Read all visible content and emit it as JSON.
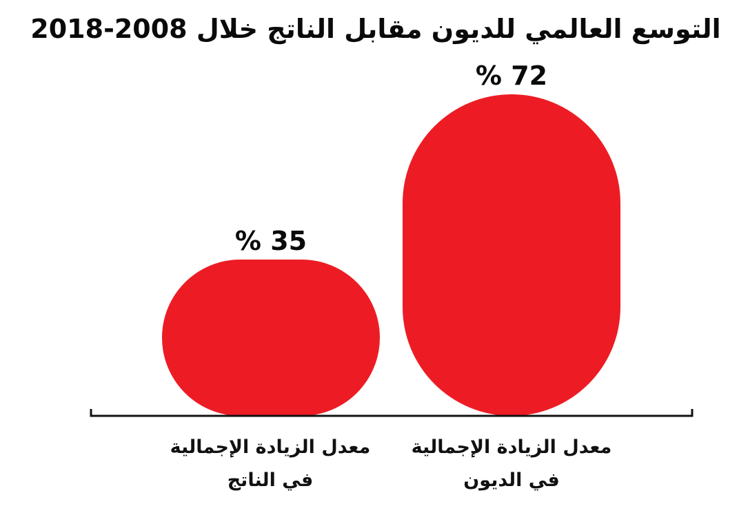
{
  "chart_data": {
    "type": "bar",
    "title": "التوسع العالمي للديون مقابل الناتج خلال 2008-2018",
    "categories": [
      "معدل الزيادة الإجمالية\nفي الناتج",
      "معدل الزيادة الإجمالية\nفي الديون"
    ],
    "values": [
      35,
      72
    ],
    "value_labels": [
      "% 35",
      "% 72"
    ],
    "ylim": [
      0,
      72
    ],
    "grid": false,
    "legend": "none",
    "bar_color": "#ED1C24",
    "axis_color": "#111111",
    "text_color": "#0a0a0a"
  }
}
